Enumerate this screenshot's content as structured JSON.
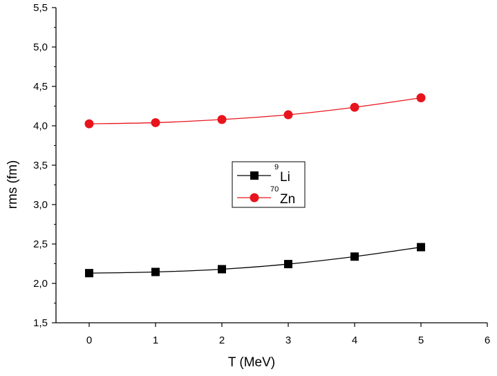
{
  "chart_data": {
    "type": "line",
    "title": "",
    "xlabel": "T (MeV)",
    "ylabel": "rms (fm)",
    "xlim": [
      -0.5,
      6
    ],
    "ylim": [
      1.5,
      5.5
    ],
    "x_ticks": [
      0,
      1,
      2,
      3,
      4,
      5,
      6
    ],
    "x_tick_labels": [
      "0",
      "1",
      "2",
      "3",
      "4",
      "5",
      "6"
    ],
    "y_ticks": [
      1.5,
      2.0,
      2.5,
      3.0,
      3.5,
      4.0,
      4.5,
      5.0,
      5.5
    ],
    "y_tick_labels": [
      "1,5",
      "2,0",
      "2,5",
      "3,0",
      "3,5",
      "4,0",
      "4,5",
      "5,0",
      "5,5"
    ],
    "grid": false,
    "legend_position": "center-left",
    "series": [
      {
        "name": "9Li",
        "mass_number": "9",
        "element": "Li",
        "color": "#000000",
        "marker": "square",
        "x": [
          0,
          1,
          2,
          3,
          4,
          5
        ],
        "values": [
          2.13,
          2.145,
          2.18,
          2.245,
          2.34,
          2.46
        ]
      },
      {
        "name": "70Zn",
        "mass_number": "70",
        "element": "Zn",
        "color": "#e8141c",
        "marker": "circle",
        "x": [
          0,
          1,
          2,
          3,
          4,
          5
        ],
        "values": [
          4.025,
          4.04,
          4.08,
          4.14,
          4.235,
          4.355
        ]
      }
    ]
  }
}
